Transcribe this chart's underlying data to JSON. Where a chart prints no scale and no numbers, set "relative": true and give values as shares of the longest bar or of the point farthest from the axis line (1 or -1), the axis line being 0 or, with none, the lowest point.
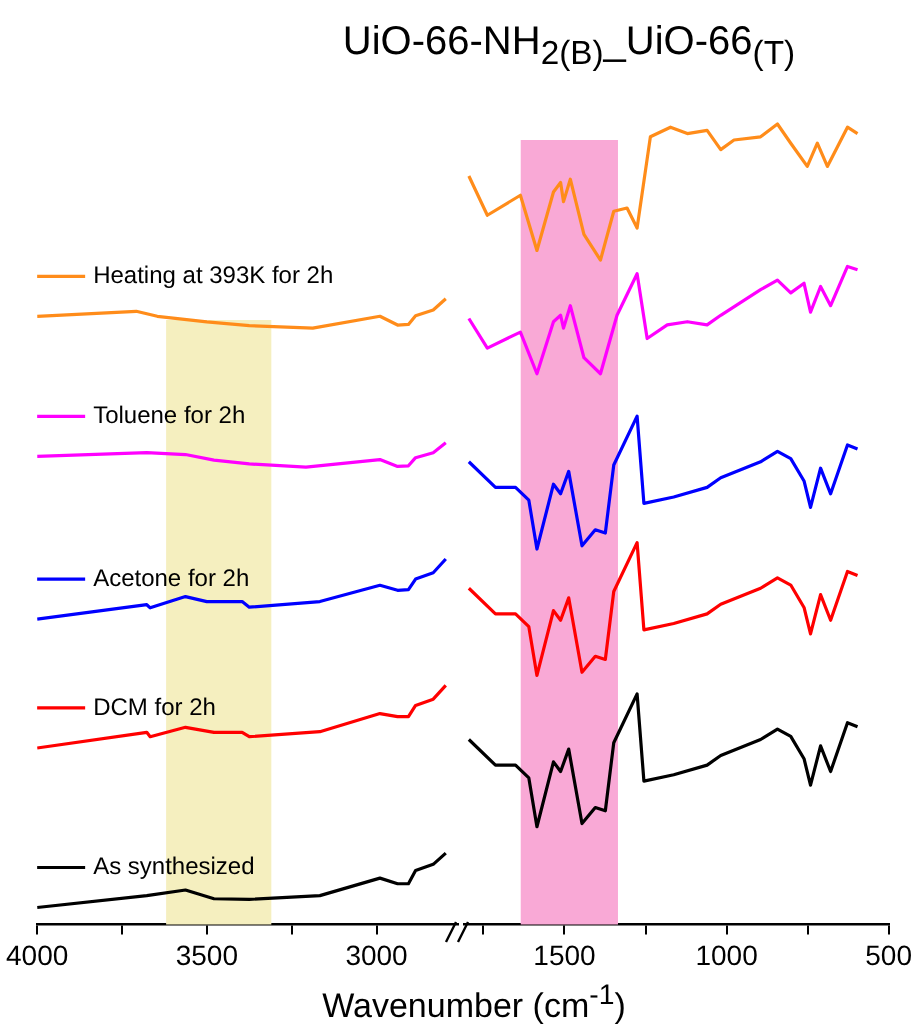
{
  "chart_data": [
    {
      "type": "line",
      "title": "UiO-66-NH$_{2(B)}$_UiO-66$_{(T)}$",
      "xlabel": "Wavenumber (cm$^{-1}$)",
      "relative": true,
      "legend": "left",
      "xlim": [
        4000,
        2760
      ],
      "xticks": [
        4000,
        {
          "value": 3750,
          "label": null
        },
        3500,
        {
          "value": 3250,
          "label": null
        },
        3000
      ],
      "grid": false,
      "bands": [
        {
          "axis": "x",
          "from": 3620,
          "to": 3310,
          "color": "#f5efbf"
        }
      ],
      "series": [
        {
          "name": "Heating at 393K for 2h",
          "color": "#ff8c1a",
          "x": [
            4000,
            3708,
            3646,
            3500,
            3375,
            3188,
            2990,
            2938,
            2906,
            2885,
            2833,
            2796
          ],
          "values": [
            0.972,
            0.98,
            0.972,
            0.963,
            0.957,
            0.953,
            0.972,
            0.958,
            0.959,
            0.973,
            0.982,
            1.0
          ]
        },
        {
          "name": "Toluene for 2h",
          "color": "#ff00ff",
          "x": [
            4000,
            3677,
            3563,
            3479,
            3375,
            3208,
            2990,
            2938,
            2906,
            2885,
            2833,
            2796
          ],
          "values": [
            0.748,
            0.754,
            0.751,
            0.742,
            0.736,
            0.731,
            0.743,
            0.732,
            0.733,
            0.746,
            0.754,
            0.77
          ]
        },
        {
          "name": "Acetone for 2h",
          "color": "#0000ff",
          "x": [
            4000,
            3677,
            3667,
            3563,
            3500,
            3396,
            3375,
            3167,
            2990,
            2938,
            2906,
            2885,
            2833,
            2796
          ],
          "values": [
            0.488,
            0.511,
            0.506,
            0.524,
            0.516,
            0.516,
            0.507,
            0.516,
            0.542,
            0.534,
            0.535,
            0.552,
            0.562,
            0.584
          ]
        },
        {
          "name": "DCM for 2h",
          "color": "#ff0000",
          "x": [
            4000,
            3677,
            3667,
            3563,
            3479,
            3396,
            3375,
            3167,
            2990,
            2938,
            2906,
            2885,
            2833,
            2796
          ],
          "values": [
            0.282,
            0.307,
            0.3,
            0.315,
            0.307,
            0.307,
            0.3,
            0.308,
            0.337,
            0.332,
            0.332,
            0.35,
            0.36,
            0.382
          ]
        },
        {
          "name": "As synthesized",
          "color": "#000000",
          "x": [
            4000,
            3677,
            3563,
            3479,
            3375,
            3167,
            2990,
            2938,
            2906,
            2885,
            2833,
            2796
          ],
          "values": [
            0.027,
            0.046,
            0.055,
            0.041,
            0.04,
            0.046,
            0.074,
            0.065,
            0.065,
            0.086,
            0.096,
            0.114
          ]
        }
      ]
    },
    {
      "type": "line",
      "relative": true,
      "xlim": [
        1810,
        500
      ],
      "xticks": [
        {
          "value": 1750,
          "label": null
        },
        1500,
        {
          "value": 1250,
          "label": null
        },
        1000,
        {
          "value": 750,
          "label": null
        },
        500
      ],
      "grid": false,
      "bands": [
        {
          "axis": "x",
          "from": 1635,
          "to": 1335,
          "color": "#f9a9d6"
        }
      ],
      "series": [
        {
          "color": "#ff8c1a",
          "x": [
            1795,
            1738,
            1636,
            1585,
            1534,
            1512,
            1503,
            1482,
            1440,
            1389,
            1348,
            1307,
            1276,
            1235,
            1173,
            1121,
            1060,
            1018,
            977,
            895,
            843,
            802,
            751,
            720,
            689,
            627,
            596
          ],
          "values": [
            0.935,
            0.886,
            0.911,
            0.842,
            0.915,
            0.927,
            0.903,
            0.931,
            0.862,
            0.83,
            0.891,
            0.895,
            0.87,
            0.984,
            0.996,
            0.988,
            0.992,
            0.968,
            0.98,
            0.984,
            1.0,
            0.976,
            0.947,
            0.976,
            0.947,
            0.996,
            0.988
          ]
        },
        {
          "color": "#ff00ff",
          "x": [
            1795,
            1738,
            1677,
            1636,
            1585,
            1534,
            1512,
            1503,
            1482,
            1440,
            1389,
            1338,
            1276,
            1245,
            1183,
            1121,
            1060,
            1018,
            895,
            843,
            802,
            761,
            741,
            710,
            679,
            627,
            596
          ],
          "values": [
            0.757,
            0.72,
            0.732,
            0.74,
            0.688,
            0.753,
            0.761,
            0.745,
            0.773,
            0.708,
            0.688,
            0.761,
            0.813,
            0.732,
            0.749,
            0.753,
            0.749,
            0.761,
            0.793,
            0.805,
            0.789,
            0.801,
            0.765,
            0.797,
            0.773,
            0.822,
            0.818
          ]
        },
        {
          "color": "#0000ff",
          "x": [
            1795,
            1713,
            1651,
            1610,
            1585,
            1534,
            1512,
            1487,
            1446,
            1405,
            1374,
            1348,
            1276,
            1255,
            1163,
            1060,
            1018,
            895,
            843,
            802,
            761,
            741,
            710,
            679,
            627,
            596
          ],
          "values": [
            0.578,
            0.546,
            0.546,
            0.53,
            0.469,
            0.55,
            0.538,
            0.566,
            0.473,
            0.493,
            0.489,
            0.574,
            0.635,
            0.526,
            0.534,
            0.546,
            0.558,
            0.578,
            0.591,
            0.582,
            0.554,
            0.521,
            0.57,
            0.538,
            0.599,
            0.594
          ]
        },
        {
          "color": "#ff0000",
          "x": [
            1795,
            1713,
            1651,
            1610,
            1585,
            1534,
            1512,
            1487,
            1446,
            1405,
            1374,
            1348,
            1276,
            1255,
            1163,
            1060,
            1018,
            895,
            843,
            802,
            761,
            741,
            710,
            679,
            627,
            596
          ],
          "values": [
            0.42,
            0.388,
            0.388,
            0.372,
            0.311,
            0.392,
            0.38,
            0.408,
            0.315,
            0.335,
            0.331,
            0.416,
            0.477,
            0.368,
            0.376,
            0.388,
            0.4,
            0.42,
            0.433,
            0.424,
            0.396,
            0.363,
            0.412,
            0.38,
            0.441,
            0.436
          ]
        },
        {
          "color": "#000000",
          "x": [
            1795,
            1713,
            1651,
            1610,
            1585,
            1534,
            1512,
            1487,
            1446,
            1405,
            1374,
            1348,
            1276,
            1255,
            1163,
            1060,
            1018,
            895,
            843,
            802,
            761,
            741,
            710,
            679,
            627,
            596
          ],
          "values": [
            0.231,
            0.199,
            0.199,
            0.183,
            0.122,
            0.203,
            0.191,
            0.219,
            0.126,
            0.146,
            0.142,
            0.227,
            0.288,
            0.179,
            0.187,
            0.199,
            0.211,
            0.231,
            0.244,
            0.235,
            0.207,
            0.174,
            0.223,
            0.191,
            0.252,
            0.247
          ]
        }
      ]
    }
  ]
}
